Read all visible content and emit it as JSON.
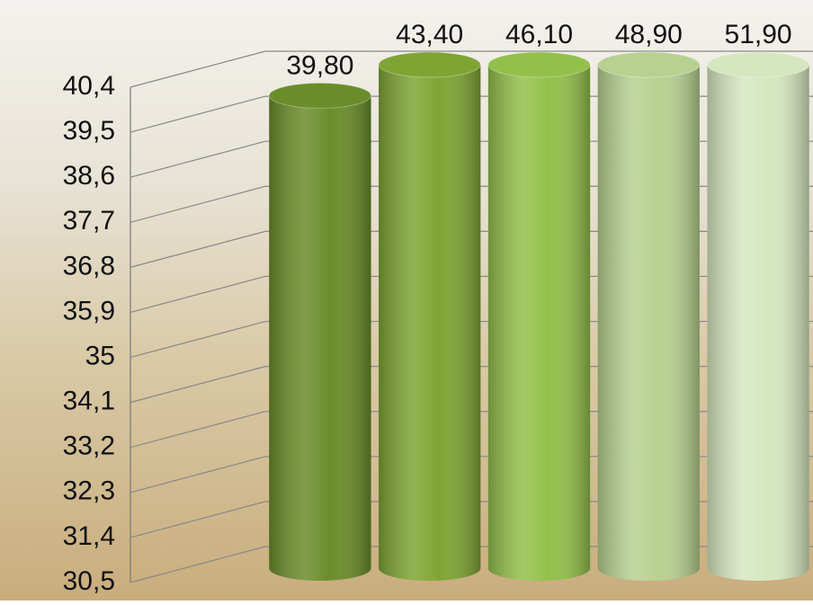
{
  "chart_data": {
    "type": "bar",
    "values": [
      39.8,
      43.4,
      46.1,
      48.9,
      51.9
    ],
    "value_labels": [
      "39,80",
      "43,40",
      "46,10",
      "48,90",
      "51,90"
    ],
    "colors": [
      "#6a8d2a",
      "#7ea534",
      "#93c04b",
      "#b7d190",
      "#d6e7c0"
    ],
    "ylim": [
      30.5,
      40.4
    ],
    "yticks": [
      {
        "value": 30.5,
        "label": "30,5"
      },
      {
        "value": 31.4,
        "label": "31,4"
      },
      {
        "value": 32.3,
        "label": "32,3"
      },
      {
        "value": 33.2,
        "label": "33,2"
      },
      {
        "value": 34.1,
        "label": "34,1"
      },
      35,
      {
        "value": 35.9,
        "label": "35,9"
      },
      {
        "value": 36.8,
        "label": "36,8"
      },
      {
        "value": 37.7,
        "label": "37,7"
      },
      {
        "value": 38.6,
        "label": "38,6"
      },
      {
        "value": 39.5,
        "label": "39,5"
      },
      {
        "value": 40.4,
        "label": "40,4"
      }
    ],
    "grid": true
  }
}
